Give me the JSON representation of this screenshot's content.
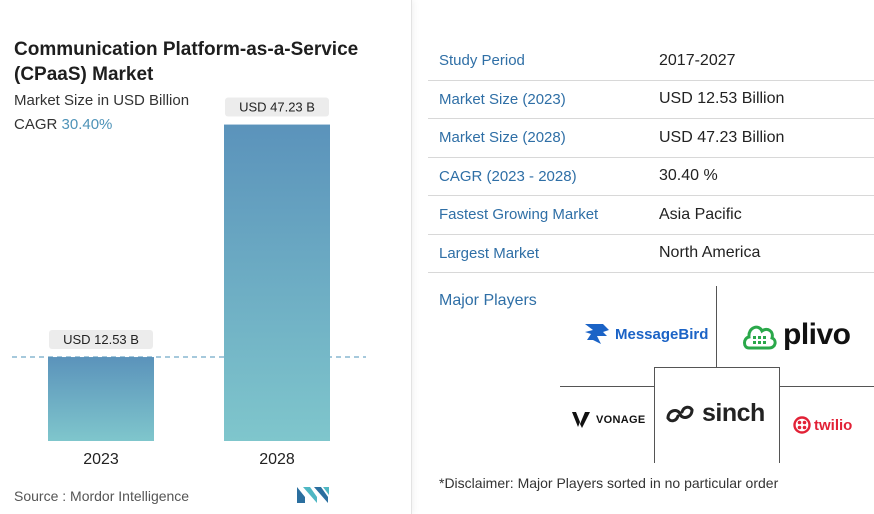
{
  "chart": {
    "title": "Communication Platform-as-a-Service (CPaaS) Market",
    "subtitle": "Market Size in USD Billion",
    "cagr_label": "CAGR",
    "cagr_value": "30.40%"
  },
  "chart_data": {
    "type": "bar",
    "title": "Communication Platform-as-a-Service (CPaaS) Market",
    "subtitle": "Market Size in USD Billion",
    "categories": [
      "2023",
      "2028"
    ],
    "values": [
      12.53,
      47.23
    ],
    "data_labels": [
      "USD 12.53 B",
      "USD 47.23 B"
    ],
    "xlabel": "",
    "ylabel": "",
    "ylim": [
      0,
      50
    ],
    "grid": false,
    "legend": "none",
    "reference_line_at": 12.53,
    "colors": {
      "bar_top": "#5b93bb",
      "bar_bottom": "#7fc6cc",
      "label_bg": "#ececec",
      "dash": "#4e93b8"
    }
  },
  "footer": {
    "source": "Source :  Mordor Intelligence",
    "brand_icon": "mordor-intelligence-logo"
  },
  "summary_table": [
    {
      "label": "Study Period",
      "value": "2017-2027"
    },
    {
      "label": "Market Size (2023)",
      "value": "USD 12.53 Billion"
    },
    {
      "label": "Market Size (2028)",
      "value": "USD 47.23 Billion"
    },
    {
      "label": "CAGR (2023 - 2028)",
      "value": "30.40 %"
    },
    {
      "label": "Fastest Growing Market",
      "value": "Asia Pacific"
    },
    {
      "label": "Largest Market",
      "value": "North America"
    }
  ],
  "major_players": {
    "heading": "Major Players",
    "logos": {
      "messagebird": "MessageBird",
      "plivo": "plivo",
      "vonage": "VONAGE",
      "sinch": "sinch",
      "twilio": "twilio"
    },
    "disclaimer": "*Disclaimer: Major Players sorted in no particular order"
  },
  "colors": {
    "label_blue": "#2f6fa6",
    "twilio_red": "#e22136",
    "plivo_green": "#2aa84a",
    "messagebird_blue": "#1b63c6"
  }
}
